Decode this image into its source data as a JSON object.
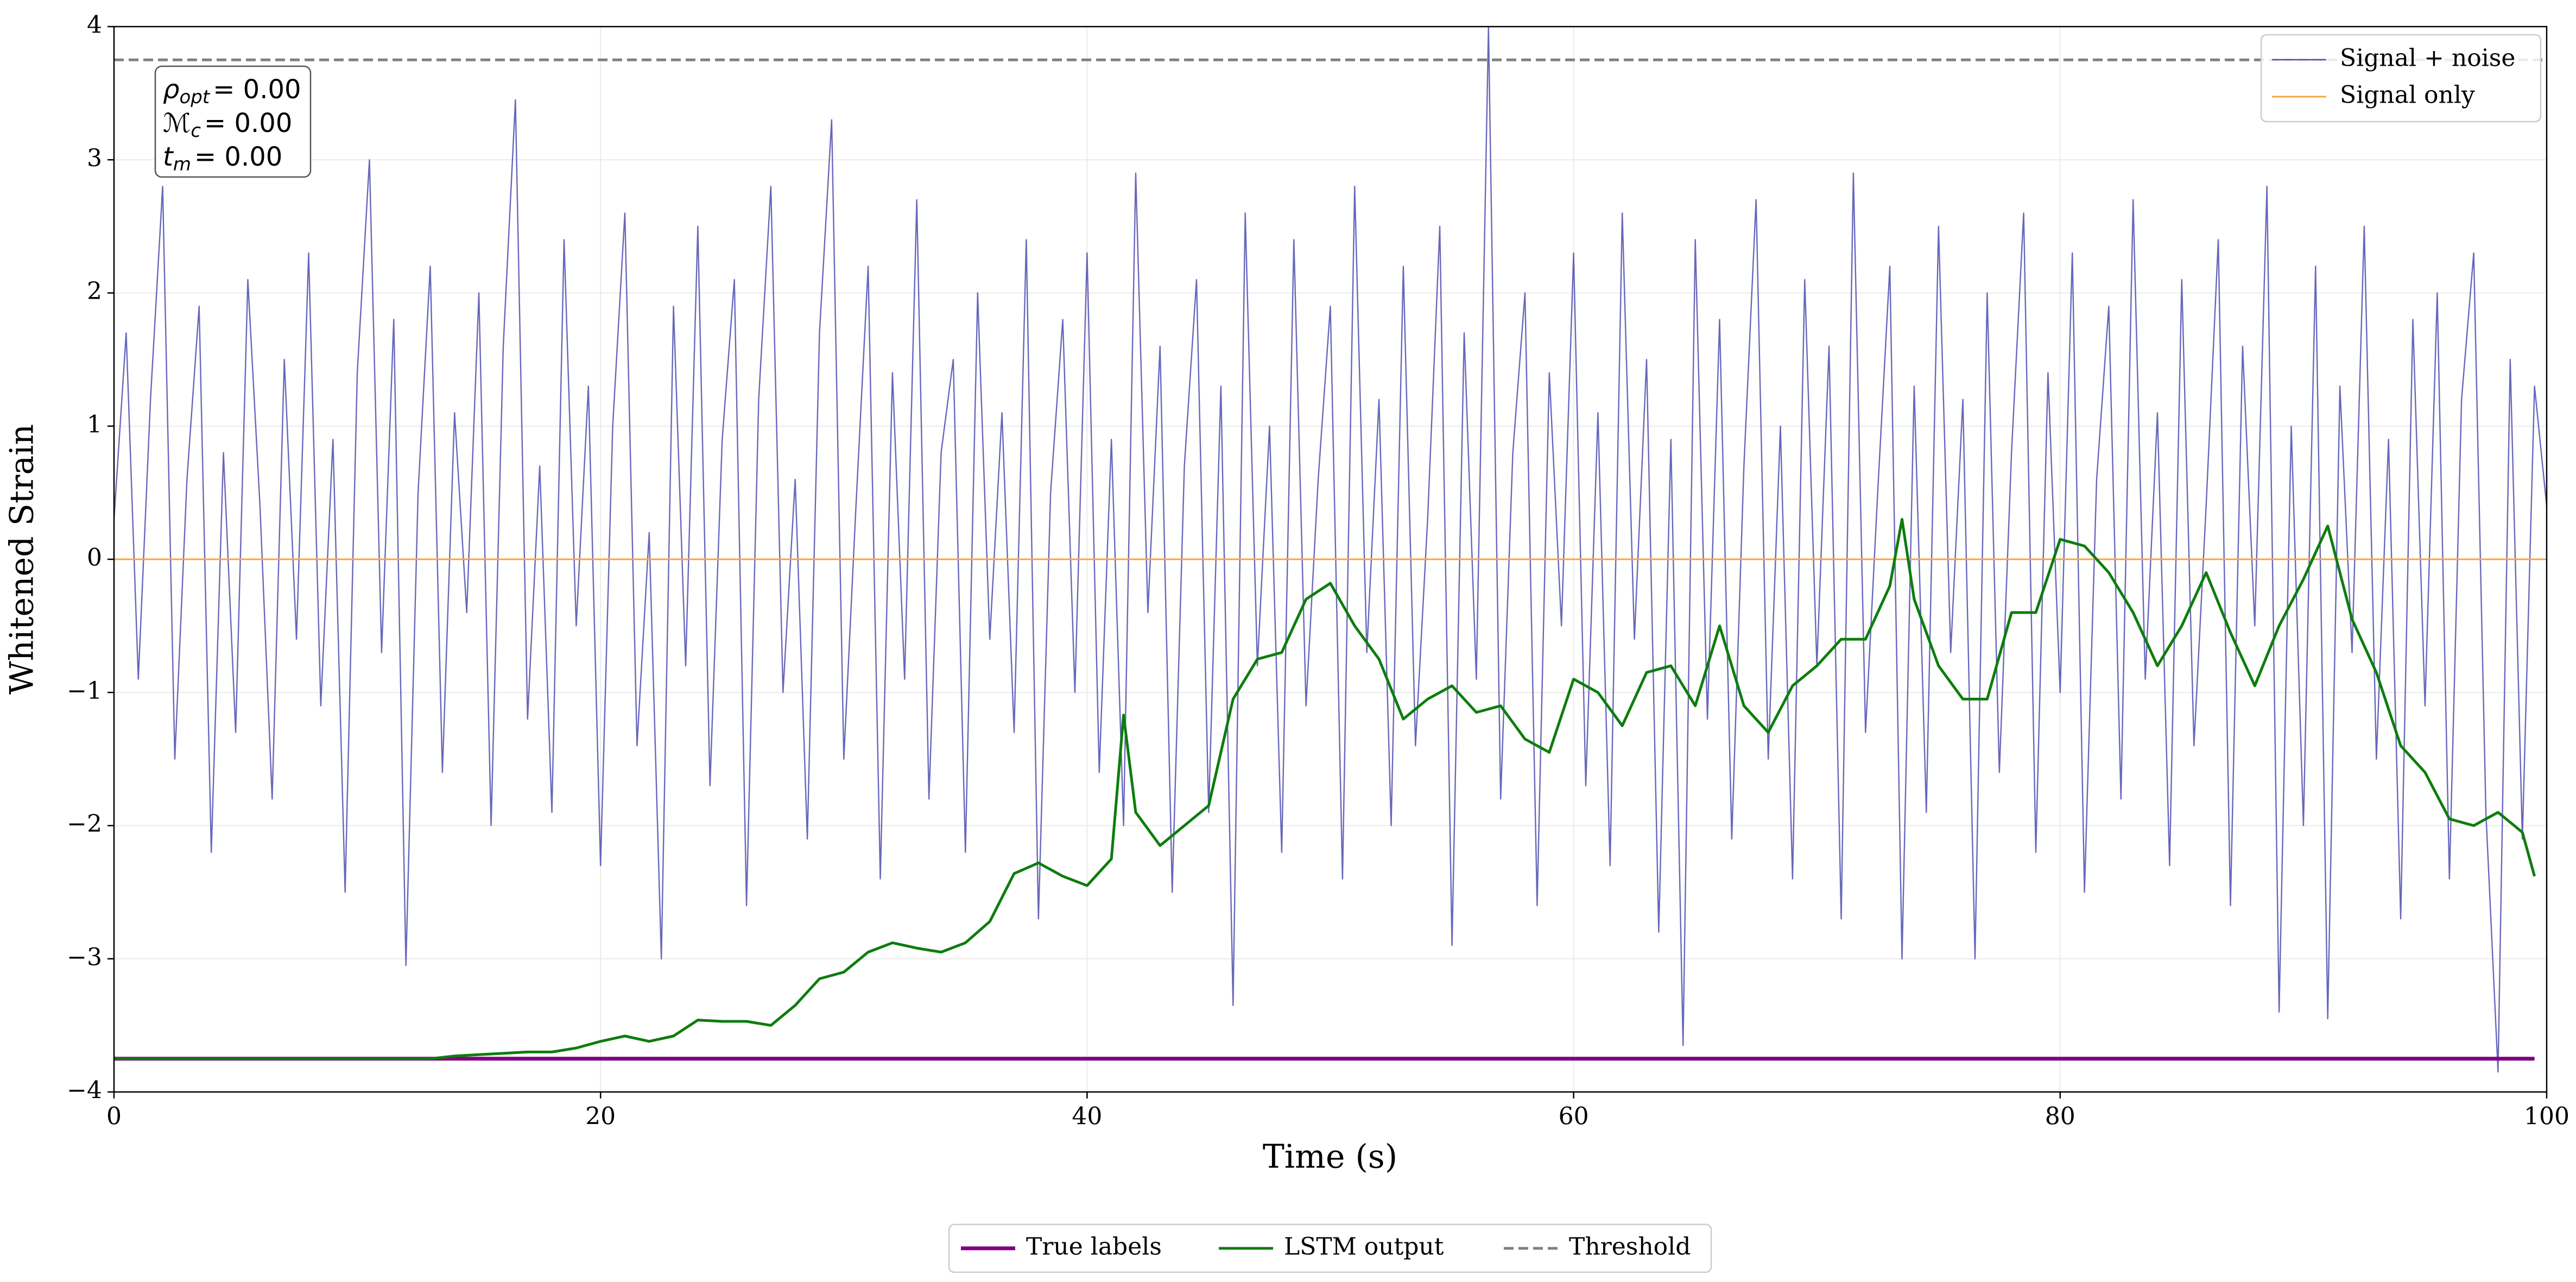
{
  "chart_data": {
    "type": "line",
    "xlabel": "Time (s)",
    "ylabel": "Whitened Strain",
    "xlim": [
      0,
      100
    ],
    "ylim": [
      -4,
      4
    ],
    "xticks": [
      0,
      20,
      40,
      60,
      80,
      100
    ],
    "yticks": [
      {
        "value": -4,
        "label": "−4"
      },
      {
        "value": -3,
        "label": "−3"
      },
      {
        "value": -2,
        "label": "−2"
      },
      {
        "value": -1,
        "label": "−1"
      },
      0,
      1,
      2,
      3,
      4
    ],
    "grid": true,
    "annotation": [
      {
        "symbol": "ρ",
        "sub": "opt",
        "text": "= 0.00"
      },
      {
        "symbol": "ℳ",
        "sub": "c",
        "text": "= 0.00"
      },
      {
        "symbol": "t",
        "sub": "m",
        "text": "= 0.00"
      }
    ],
    "series": [
      {
        "name": "Signal + noise",
        "color": "#4c4cb0",
        "legend": "upper right",
        "x": [
          0,
          0.5,
          1,
          1.5,
          2,
          2.5,
          3,
          3.5,
          4,
          4.5,
          5,
          5.5,
          6,
          6.5,
          7,
          7.5,
          8,
          8.5,
          9,
          9.5,
          10,
          10.5,
          11,
          11.5,
          12,
          12.5,
          13,
          13.5,
          14,
          14.5,
          15,
          15.5,
          16,
          16.5,
          17,
          17.5,
          18,
          18.5,
          19,
          19.5,
          20,
          20.5,
          21,
          21.5,
          22,
          22.5,
          23,
          23.5,
          24,
          24.5,
          25,
          25.5,
          26,
          26.5,
          27,
          27.5,
          28,
          28.5,
          29,
          29.5,
          30,
          30.5,
          31,
          31.5,
          32,
          32.5,
          33,
          33.5,
          34,
          34.5,
          35,
          35.5,
          36,
          36.5,
          37,
          37.5,
          38,
          38.5,
          39,
          39.5,
          40,
          40.5,
          41,
          41.5,
          42,
          42.5,
          43,
          43.5,
          44,
          44.5,
          45,
          45.5,
          46,
          46.5,
          47,
          47.5,
          48,
          48.5,
          49,
          49.5,
          50,
          50.5,
          51,
          51.5,
          52,
          52.5,
          53,
          53.5,
          54,
          54.5,
          55,
          55.5,
          56,
          56.5,
          57,
          57.5,
          58,
          58.5,
          59,
          59.5,
          60,
          60.5,
          61,
          61.5,
          62,
          62.5,
          63,
          63.5,
          64,
          64.5,
          65,
          65.5,
          66,
          66.5,
          67,
          67.5,
          68,
          68.5,
          69,
          69.5,
          70,
          70.5,
          71,
          71.5,
          72,
          72.5,
          73,
          73.5,
          74,
          74.5,
          75,
          75.5,
          76,
          76.5,
          77,
          77.5,
          78,
          78.5,
          79,
          79.5,
          80,
          80.5,
          81,
          81.5,
          82,
          82.5,
          83,
          83.5,
          84,
          84.5,
          85,
          85.5,
          86,
          86.5,
          87,
          87.5,
          88,
          88.5,
          89,
          89.5,
          90,
          90.5,
          91,
          91.5,
          92,
          92.5,
          93,
          93.5,
          94,
          94.5,
          95,
          95.5,
          96,
          96.5,
          97,
          97.5,
          98,
          98.5,
          99,
          99.5,
          100
        ],
        "values": [
          0.3,
          1.7,
          -0.9,
          1.2,
          2.8,
          -1.5,
          0.6,
          1.9,
          -2.2,
          0.8,
          -1.3,
          2.1,
          0.4,
          -1.8,
          1.5,
          -0.6,
          2.3,
          -1.1,
          0.9,
          -2.5,
          1.4,
          3.0,
          -0.7,
          1.8,
          -3.05,
          0.5,
          2.2,
          -1.6,
          1.1,
          -0.4,
          2.0,
          -2.0,
          1.6,
          3.45,
          -1.2,
          0.7,
          -1.9,
          2.4,
          -0.5,
          1.3,
          -2.3,
          1.0,
          2.6,
          -1.4,
          0.2,
          -3.0,
          1.9,
          -0.8,
          2.5,
          -1.7,
          0.9,
          2.1,
          -2.6,
          1.2,
          2.8,
          -1.0,
          0.6,
          -2.1,
          1.7,
          3.3,
          -1.5,
          0.4,
          2.2,
          -2.4,
          1.4,
          -0.9,
          2.7,
          -1.8,
          0.8,
          1.5,
          -2.2,
          2.0,
          -0.6,
          1.1,
          -1.3,
          2.4,
          -2.7,
          0.5,
          1.8,
          -1.0,
          2.3,
          -1.6,
          0.9,
          -2.0,
          2.9,
          -0.4,
          1.6,
          -2.5,
          0.7,
          2.1,
          -1.9,
          1.3,
          -3.35,
          2.6,
          -0.8,
          1.0,
          -2.2,
          2.4,
          -1.1,
          0.6,
          1.9,
          -2.4,
          2.8,
          -0.7,
          1.2,
          -2.0,
          2.2,
          -1.4,
          0.3,
          2.5,
          -2.9,
          1.7,
          -0.9,
          4.0,
          -1.8,
          0.8,
          2.0,
          -2.6,
          1.4,
          -0.5,
          2.3,
          -1.7,
          1.1,
          -2.3,
          2.6,
          -0.6,
          1.5,
          -2.8,
          0.9,
          -3.65,
          2.4,
          -1.2,
          1.8,
          -2.1,
          0.7,
          2.7,
          -1.5,
          1.0,
          -2.4,
          2.1,
          -0.8,
          1.6,
          -2.7,
          2.9,
          -1.3,
          0.5,
          2.2,
          -3.0,
          1.3,
          -1.9,
          2.5,
          -0.7,
          1.2,
          -3.0,
          2.0,
          -1.6,
          0.8,
          2.6,
          -2.2,
          1.4,
          -1.0,
          2.3,
          -2.5,
          0.6,
          1.9,
          -1.8,
          2.7,
          -0.9,
          1.1,
          -2.3,
          2.1,
          -1.4,
          0.4,
          2.4,
          -2.6,
          1.6,
          -0.5,
          2.8,
          -3.4,
          1.0,
          -2.0,
          2.2,
          -3.45,
          1.3,
          -0.7,
          2.5,
          -1.5,
          0.9,
          -2.7,
          1.8,
          -1.1,
          2.0,
          -2.4,
          1.2,
          2.3,
          -1.9,
          -3.85,
          1.5,
          -2.1,
          1.3,
          0.4
        ]
      },
      {
        "name": "Signal only",
        "color": "#f5a742",
        "legend": "upper right",
        "x": [
          0,
          100
        ],
        "values": [
          0,
          0
        ]
      },
      {
        "name": "True labels",
        "color": "#800080",
        "legend": "lower center",
        "x": [
          0,
          99.5
        ],
        "values": [
          -3.75,
          -3.75
        ]
      },
      {
        "name": "LSTM output",
        "color": "#0d7d0d",
        "legend": "lower center",
        "x": [
          0,
          1,
          2,
          3,
          4,
          5,
          6,
          7,
          8,
          9,
          10,
          11,
          12,
          13,
          14,
          15,
          16,
          17,
          18,
          19,
          20,
          21,
          22,
          23,
          24,
          25,
          26,
          27,
          28,
          29,
          30,
          31,
          32,
          33,
          34,
          35,
          36,
          37,
          38,
          39,
          40,
          41,
          41.5,
          42,
          43,
          44,
          45,
          46,
          47,
          48,
          49,
          50,
          51,
          52,
          53,
          54,
          55,
          56,
          57,
          58,
          59,
          60,
          61,
          62,
          63,
          64,
          65,
          66,
          67,
          68,
          69,
          70,
          71,
          72,
          73,
          73.5,
          74,
          75,
          76,
          77,
          78,
          79,
          80,
          81,
          82,
          83,
          84,
          85,
          86,
          87,
          88,
          89,
          90,
          91,
          92,
          93,
          94,
          95,
          96,
          97,
          98,
          99,
          99.5
        ],
        "values": [
          -3.75,
          -3.75,
          -3.75,
          -3.75,
          -3.75,
          -3.75,
          -3.75,
          -3.75,
          -3.75,
          -3.75,
          -3.75,
          -3.75,
          -3.75,
          -3.75,
          -3.73,
          -3.72,
          -3.71,
          -3.7,
          -3.7,
          -3.67,
          -3.62,
          -3.58,
          -3.62,
          -3.58,
          -3.46,
          -3.47,
          -3.47,
          -3.5,
          -3.35,
          -3.15,
          -3.1,
          -2.95,
          -2.88,
          -2.92,
          -2.95,
          -2.88,
          -2.72,
          -2.36,
          -2.28,
          -2.38,
          -2.45,
          -2.25,
          -1.17,
          -1.9,
          -2.15,
          -2.0,
          -1.85,
          -1.05,
          -0.75,
          -0.7,
          -0.3,
          -0.18,
          -0.5,
          -0.75,
          -1.2,
          -1.05,
          -0.95,
          -1.15,
          -1.1,
          -1.35,
          -1.45,
          -0.9,
          -1.0,
          -1.25,
          -0.85,
          -0.8,
          -1.1,
          -0.5,
          -1.1,
          -1.3,
          -0.95,
          -0.8,
          -0.6,
          -0.6,
          -0.2,
          0.3,
          -0.3,
          -0.8,
          -1.05,
          -1.05,
          -0.4,
          -0.4,
          0.15,
          0.1,
          -0.1,
          -0.4,
          -0.8,
          -0.5,
          -0.1,
          -0.55,
          -0.95,
          -0.5,
          -0.15,
          0.25,
          -0.45,
          -0.85,
          -1.4,
          -1.6,
          -1.95,
          -2.0,
          -1.9,
          -2.05,
          -2.38
        ]
      },
      {
        "name": "Threshold",
        "color": "#808080",
        "legend": "lower center",
        "dashed": true,
        "x": [
          0,
          100
        ],
        "values": [
          3.75,
          3.75
        ]
      }
    ]
  }
}
